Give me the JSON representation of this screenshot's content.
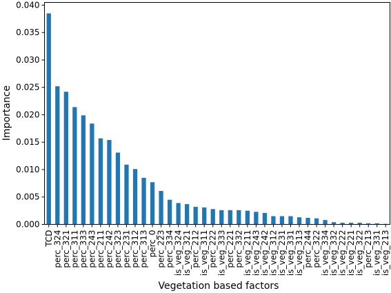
{
  "chart_data": {
    "type": "bar",
    "title": "",
    "xlabel": "Vegetation based factors",
    "ylabel": "Importance",
    "ylim": [
      0,
      0.0405
    ],
    "yticks": [
      0.0,
      0.005,
      0.01,
      0.015,
      0.02,
      0.025,
      0.03,
      0.035,
      0.04
    ],
    "ytick_labels": [
      "0.000",
      "0.005",
      "0.010",
      "0.015",
      "0.020",
      "0.025",
      "0.030",
      "0.035",
      "0.040"
    ],
    "grid": false,
    "bar_color": "#1f77b4",
    "categories": [
      "TCD",
      "perc_324",
      "perc_321",
      "perc_311",
      "perc_333",
      "perc_243",
      "perc_211",
      "perc_242",
      "perc_323",
      "perc_231",
      "perc_312",
      "perc_313",
      "perc_0",
      "perc_223",
      "perc_334",
      "is_veg_324",
      "is_veg_321",
      "perc_212",
      "is_veg_311",
      "perc_222",
      "is_veg_333",
      "perc_221",
      "perc_332",
      "is_veg_211",
      "is_veg_243",
      "is_veg_242",
      "is_veg_312",
      "is_veg_231",
      "is_veg_331",
      "is_veg_313",
      "perc_244",
      "perc_322",
      "is_veg_334",
      "is_veg_332",
      "is_veg_222",
      "is_veg_221",
      "is_veg_322",
      "perc_213",
      "is_veg_331",
      "is_veg_213"
    ],
    "values": [
      0.0385,
      0.0252,
      0.0242,
      0.0214,
      0.0199,
      0.0184,
      0.0157,
      0.0154,
      0.0131,
      0.0109,
      0.0101,
      0.0085,
      0.0077,
      0.0061,
      0.0045,
      0.0039,
      0.0037,
      0.0032,
      0.0031,
      0.0028,
      0.0026,
      0.0026,
      0.0026,
      0.0025,
      0.0023,
      0.0021,
      0.0015,
      0.0015,
      0.0015,
      0.0013,
      0.0012,
      0.0011,
      0.0008,
      0.0004,
      0.0003,
      0.0003,
      0.0003,
      0.0002,
      0.0002,
      0.0001
    ]
  }
}
